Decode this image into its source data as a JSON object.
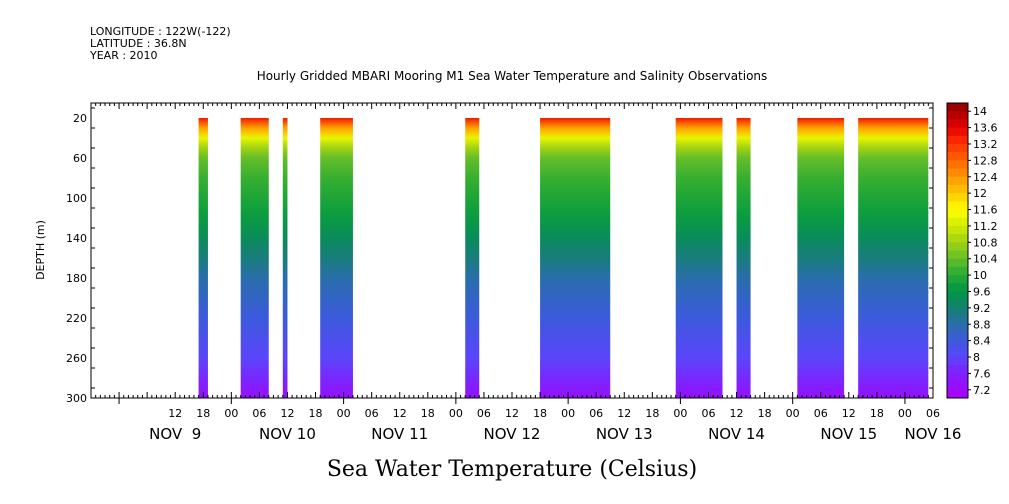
{
  "header": {
    "longitude": "LONGITUDE : 122W(-122)",
    "latitude": "LATITUDE : 36.8N",
    "year": "YEAR : 2010"
  },
  "chart_data": {
    "type": "heatmap",
    "title": "Hourly Gridded MBARI Mooring M1 Sea Water Temperature and Salinity Observations",
    "ylabel": "DEPTH (m)",
    "xlabel_main": "Sea Water Temperature (Celsius)",
    "x_hours_range": [
      -6,
      174
    ],
    "x_origin": "NOV 9 00",
    "ylim": [
      300,
      5
    ],
    "y_reversed": true,
    "y_ticks": [
      20,
      60,
      100,
      140,
      180,
      220,
      260,
      300
    ],
    "x_hour_ticks": [
      {
        "h": 12,
        "label": "12"
      },
      {
        "h": 18,
        "label": "18"
      },
      {
        "h": 24,
        "label": "00"
      },
      {
        "h": 30,
        "label": "06"
      },
      {
        "h": 36,
        "label": "12"
      },
      {
        "h": 42,
        "label": "18"
      },
      {
        "h": 48,
        "label": "00"
      },
      {
        "h": 54,
        "label": "06"
      },
      {
        "h": 60,
        "label": "12"
      },
      {
        "h": 66,
        "label": "18"
      },
      {
        "h": 72,
        "label": "00"
      },
      {
        "h": 78,
        "label": "06"
      },
      {
        "h": 84,
        "label": "12"
      },
      {
        "h": 90,
        "label": "18"
      },
      {
        "h": 96,
        "label": "00"
      },
      {
        "h": 102,
        "label": "06"
      },
      {
        "h": 108,
        "label": "12"
      },
      {
        "h": 114,
        "label": "18"
      },
      {
        "h": 120,
        "label": "00"
      },
      {
        "h": 126,
        "label": "06"
      },
      {
        "h": 132,
        "label": "12"
      },
      {
        "h": 138,
        "label": "18"
      },
      {
        "h": 144,
        "label": "00"
      },
      {
        "h": 150,
        "label": "06"
      },
      {
        "h": 156,
        "label": "12"
      },
      {
        "h": 162,
        "label": "18"
      },
      {
        "h": 168,
        "label": "00"
      },
      {
        "h": 174,
        "label": "06"
      }
    ],
    "day_labels": [
      {
        "label": "NOV  9",
        "h": 12
      },
      {
        "label": "NOV 10",
        "h": 36
      },
      {
        "label": "NOV 11",
        "h": 60
      },
      {
        "label": "NOV 12",
        "h": 84
      },
      {
        "label": "NOV 13",
        "h": 108
      },
      {
        "label": "NOV 14",
        "h": 132
      },
      {
        "label": "NOV 15",
        "h": 156
      },
      {
        "label": "NOV 16",
        "h": 174
      }
    ],
    "data_segments": [
      {
        "start_h": 17,
        "end_h": 19
      },
      {
        "start_h": 26,
        "end_h": 32
      },
      {
        "start_h": 35,
        "end_h": 36
      },
      {
        "start_h": 43,
        "end_h": 50
      },
      {
        "start_h": 74,
        "end_h": 77
      },
      {
        "start_h": 90,
        "end_h": 105
      },
      {
        "start_h": 119,
        "end_h": 129
      },
      {
        "start_h": 132,
        "end_h": 135
      },
      {
        "start_h": 145,
        "end_h": 155
      },
      {
        "start_h": 158,
        "end_h": 173
      }
    ],
    "temperature_profile": [
      {
        "depth": 20,
        "temp": 13.4
      },
      {
        "depth": 30,
        "temp": 12.3
      },
      {
        "depth": 40,
        "temp": 11.4
      },
      {
        "depth": 50,
        "temp": 10.8
      },
      {
        "depth": 60,
        "temp": 10.4
      },
      {
        "depth": 80,
        "temp": 10.1
      },
      {
        "depth": 100,
        "temp": 9.9
      },
      {
        "depth": 120,
        "temp": 9.7
      },
      {
        "depth": 140,
        "temp": 9.4
      },
      {
        "depth": 160,
        "temp": 9.1
      },
      {
        "depth": 180,
        "temp": 8.8
      },
      {
        "depth": 200,
        "temp": 8.6
      },
      {
        "depth": 220,
        "temp": 8.4
      },
      {
        "depth": 240,
        "temp": 8.2
      },
      {
        "depth": 260,
        "temp": 8.0
      },
      {
        "depth": 280,
        "temp": 7.7
      },
      {
        "depth": 300,
        "temp": 7.3
      }
    ],
    "colorbar": {
      "min": 7.0,
      "max": 14.2,
      "step": 0.2,
      "labels": [
        "14",
        "13.6",
        "13.2",
        "12.8",
        "12.4",
        "12",
        "11.6",
        "11.2",
        "10.8",
        "10.4",
        "10",
        "9.6",
        "9.2",
        "8.8",
        "8.4",
        "8",
        "7.6",
        "7.2"
      ]
    }
  }
}
